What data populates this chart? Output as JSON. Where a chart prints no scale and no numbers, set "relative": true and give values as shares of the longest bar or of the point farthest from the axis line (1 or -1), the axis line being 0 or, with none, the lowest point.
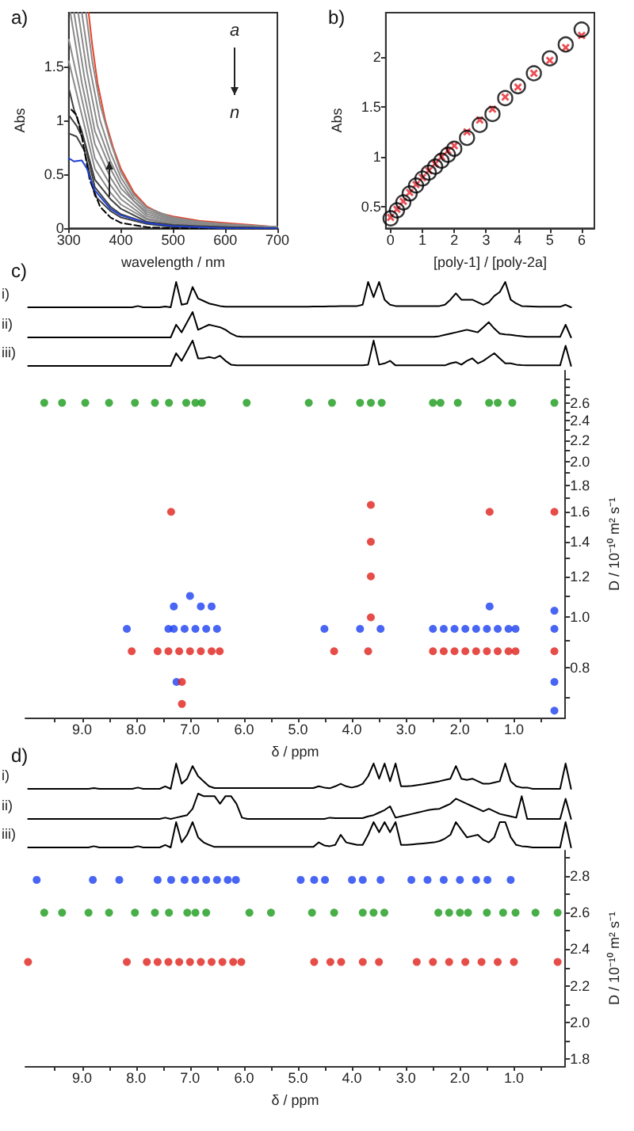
{
  "chart_data": [
    {
      "type": "line",
      "title": "a)",
      "xlabel": "wavelength / nm",
      "ylabel": "Abs",
      "annotations": [
        "a",
        "n"
      ],
      "marker": "none",
      "xlim": [
        300,
        700
      ],
      "ylim": [
        0,
        2
      ],
      "xticks": [
        300,
        400,
        500,
        600,
        700
      ],
      "yticks": [
        0,
        0.5,
        1,
        1.5
      ],
      "series": [
        {
          "color": "#e8432a",
          "x": [
            338,
            345,
            355,
            370,
            385,
            400,
            425,
            450,
            475,
            500,
            550,
            600,
            650,
            700
          ],
          "values": [
            2.0,
            1.7,
            1.35,
            1.0,
            0.75,
            0.55,
            0.33,
            0.2,
            0.14,
            0.11,
            0.07,
            0.05,
            0.03,
            0.01
          ]
        },
        {
          "color": "#8a8a8a",
          "x": [
            333,
            345,
            360,
            380,
            400,
            425,
            450,
            500,
            550,
            600,
            700
          ],
          "values": [
            2.0,
            1.55,
            1.15,
            0.8,
            0.52,
            0.31,
            0.19,
            0.1,
            0.06,
            0.04,
            0.01
          ]
        },
        {
          "color": "#8a8a8a",
          "x": [
            325,
            340,
            360,
            380,
            400,
            425,
            450,
            500,
            600,
            700
          ],
          "values": [
            2.0,
            1.5,
            1.0,
            0.7,
            0.47,
            0.28,
            0.17,
            0.09,
            0.03,
            0.01
          ]
        },
        {
          "color": "#8a8a8a",
          "x": [
            318,
            335,
            355,
            380,
            400,
            425,
            450,
            500,
            600,
            700
          ],
          "values": [
            2.0,
            1.45,
            0.95,
            0.62,
            0.42,
            0.25,
            0.15,
            0.08,
            0.03,
            0.01
          ]
        },
        {
          "color": "#8a8a8a",
          "x": [
            310,
            330,
            350,
            380,
            400,
            450,
            500,
            600,
            700
          ],
          "values": [
            2.0,
            1.4,
            0.9,
            0.55,
            0.37,
            0.13,
            0.07,
            0.02,
            0.01
          ]
        },
        {
          "color": "#8a8a8a",
          "x": [
            303,
            325,
            350,
            380,
            400,
            450,
            500,
            600,
            700
          ],
          "values": [
            2.0,
            1.35,
            0.78,
            0.47,
            0.32,
            0.11,
            0.06,
            0.02,
            0
          ]
        },
        {
          "color": "#8a8a8a",
          "x": [
            300,
            325,
            350,
            380,
            400,
            450,
            500,
            600,
            700
          ],
          "values": [
            1.75,
            1.2,
            0.65,
            0.4,
            0.27,
            0.09,
            0.05,
            0.02,
            0
          ]
        },
        {
          "color": "#8a8a8a",
          "x": [
            300,
            325,
            350,
            380,
            400,
            450,
            500,
            600,
            700
          ],
          "values": [
            1.55,
            1.05,
            0.55,
            0.33,
            0.22,
            0.08,
            0.04,
            0.01,
            0
          ]
        },
        {
          "color": "#404040",
          "x": [
            300,
            310,
            325,
            350,
            380,
            400,
            450,
            500,
            600,
            700
          ],
          "values": [
            1.3,
            1.1,
            0.9,
            0.45,
            0.27,
            0.18,
            0.06,
            0.03,
            0.01,
            0
          ]
        },
        {
          "color": "#404040",
          "x": [
            300,
            315,
            330,
            350,
            380,
            400,
            450,
            500,
            700
          ],
          "values": [
            1.05,
            0.95,
            0.8,
            0.38,
            0.2,
            0.13,
            0.05,
            0.02,
            0
          ]
        },
        {
          "color": "#404040",
          "x": [
            300,
            315,
            330,
            350,
            380,
            400,
            450,
            500,
            700
          ],
          "values": [
            0.88,
            0.85,
            0.72,
            0.3,
            0.16,
            0.1,
            0.04,
            0.01,
            0
          ]
        },
        {
          "color": "#000000",
          "line_style": "dashed",
          "x": [
            305,
            315,
            325,
            340,
            360,
            380,
            400,
            450,
            500,
            700
          ],
          "values": [
            1.1,
            1.05,
            0.85,
            0.45,
            0.2,
            0.1,
            0.05,
            0.01,
            0,
            0
          ]
        },
        {
          "color": "#1f3fd0",
          "x": [
            300,
            310,
            325,
            335,
            350,
            380,
            400,
            450,
            500,
            600,
            700
          ],
          "values": [
            0.65,
            0.62,
            0.63,
            0.55,
            0.35,
            0.18,
            0.12,
            0.05,
            0.02,
            0,
            0
          ]
        }
      ]
    },
    {
      "type": "scatter",
      "title": "b)",
      "xlabel": "[poly-1] / [poly-2a]",
      "ylabel": "Abs",
      "xlim": [
        -0.15,
        6.4
      ],
      "ylim": [
        0.28,
        2.45
      ],
      "xticks": [
        0,
        1,
        2,
        3,
        4,
        5,
        6
      ],
      "yticks": [
        0.5,
        1,
        1.5,
        2
      ],
      "x": [
        0,
        0.2,
        0.4,
        0.6,
        0.8,
        1.0,
        1.2,
        1.4,
        1.6,
        1.8,
        2.0,
        2.4,
        2.8,
        3.2,
        3.6,
        4.0,
        4.5,
        5.0,
        5.5,
        6.0
      ],
      "series": [
        {
          "color": "#000000",
          "marker": "circle",
          "values": [
            0.38,
            0.46,
            0.54,
            0.63,
            0.71,
            0.78,
            0.84,
            0.9,
            0.96,
            1.02,
            1.08,
            1.19,
            1.32,
            1.43,
            1.59,
            1.71,
            1.84,
            1.99,
            2.13,
            2.28
          ]
        },
        {
          "color": "#e8202a",
          "marker": "cross",
          "values": [
            0.39,
            0.47,
            0.55,
            0.64,
            0.72,
            0.79,
            0.86,
            0.93,
            1.0,
            1.06,
            1.11,
            1.25,
            1.37,
            1.48,
            1.6,
            1.7,
            1.84,
            1.97,
            2.1,
            2.22
          ]
        }
      ]
    },
    {
      "type": "line",
      "relative": true,
      "title": "c)",
      "ylabel": "i)",
      "tick_labels": false,
      "marker": "none",
      "color": "#000000",
      "categories": [
        null,
        null,
        null,
        null,
        null,
        null,
        null,
        null,
        null,
        null,
        null,
        null,
        null,
        null,
        null,
        null,
        null,
        null,
        null,
        null,
        null,
        null,
        null,
        null,
        null,
        null,
        null,
        null,
        null,
        null,
        null,
        null,
        null,
        null,
        null,
        null,
        null,
        null,
        null,
        null,
        null,
        null,
        null,
        null,
        null,
        null,
        null,
        null,
        null,
        null,
        null,
        null,
        null,
        null,
        null,
        null,
        null,
        null,
        null,
        null,
        null,
        null,
        null,
        null,
        null,
        null,
        null,
        null,
        null,
        null,
        null,
        null,
        null,
        null,
        null,
        null,
        null,
        null,
        null,
        null,
        null,
        null,
        null,
        null,
        null,
        null,
        null,
        null,
        null,
        null,
        null,
        null,
        null,
        null,
        null,
        null,
        null,
        null,
        null,
        null
      ],
      "values": [
        0,
        0,
        0,
        0,
        0,
        0,
        0,
        0,
        0,
        0,
        0,
        0,
        0,
        0,
        0,
        0,
        0,
        0,
        0,
        0,
        0.05,
        0,
        0,
        0,
        0,
        0.03,
        0,
        1,
        0.1,
        0.15,
        0.8,
        0.35,
        0.25,
        0.15,
        0.1,
        0.05,
        0.02,
        0.02,
        0.02,
        0.02,
        0.02,
        0.02,
        0.02,
        0.02,
        0.02,
        0.02,
        0.02,
        0.02,
        0.02,
        0.02,
        0.02,
        0.02,
        0.03,
        0.03,
        0.03,
        0.04,
        0.04,
        0.05,
        0.05,
        0.05,
        0.05,
        0.1,
        1,
        0.4,
        1,
        0.3,
        0.1,
        0.05,
        0.05,
        0.05,
        0.05,
        0.05,
        0.05,
        0.05,
        0.05,
        0.05,
        0.1,
        0.3,
        0.55,
        0.3,
        0.3,
        0.3,
        0.2,
        0.1,
        0.2,
        0.45,
        0.6,
        1,
        0.3,
        0.15,
        0.05,
        0.04,
        0.03,
        0.02,
        0.02,
        0.02,
        0.02,
        0.02,
        0.1,
        0
      ]
    },
    {
      "type": "line",
      "relative": true,
      "ylabel": "ii)",
      "tick_labels": false,
      "marker": "none",
      "color": "#000000",
      "categories": [
        null,
        null,
        null,
        null,
        null,
        null,
        null,
        null,
        null,
        null,
        null,
        null,
        null,
        null,
        null,
        null,
        null,
        null,
        null,
        null,
        null,
        null,
        null,
        null,
        null,
        null,
        null,
        null,
        null,
        null,
        null,
        null,
        null,
        null,
        null,
        null,
        null,
        null,
        null,
        null,
        null,
        null,
        null,
        null,
        null,
        null,
        null,
        null,
        null,
        null,
        null,
        null,
        null,
        null,
        null,
        null,
        null,
        null,
        null,
        null,
        null,
        null,
        null,
        null,
        null,
        null,
        null,
        null,
        null,
        null,
        null,
        null,
        null,
        null,
        null,
        null,
        null,
        null,
        null,
        null,
        null,
        null,
        null,
        null,
        null,
        null,
        null,
        null,
        null,
        null,
        null,
        null,
        null,
        null,
        null,
        null,
        null,
        null,
        null,
        null
      ],
      "values": [
        0,
        0,
        0,
        0,
        0,
        0,
        0,
        0,
        0,
        0,
        0,
        0,
        0,
        0,
        0,
        0,
        0,
        0,
        0,
        0,
        0,
        0,
        0,
        0,
        0,
        0,
        0,
        0.5,
        0.2,
        0.6,
        1.0,
        0.3,
        0.4,
        0.5,
        0.45,
        0.4,
        0.3,
        0.15,
        0.05,
        0.02,
        0.02,
        0.02,
        0.02,
        0.02,
        0.02,
        0.02,
        0.02,
        0.02,
        0.02,
        0.02,
        0.02,
        0.02,
        0.02,
        0.02,
        0.02,
        0.02,
        0.02,
        0.02,
        0.02,
        0.02,
        0.02,
        0.02,
        0.02,
        0.02,
        0.02,
        0.02,
        0.02,
        0.02,
        0.02,
        0.02,
        0.02,
        0.02,
        0.02,
        0.02,
        0.02,
        0.05,
        0.1,
        0.15,
        0.2,
        0.25,
        0.3,
        0.25,
        0.2,
        0.4,
        0.6,
        0.35,
        0.15,
        0.12,
        0.1,
        0.07,
        0.05,
        0.02,
        0.02,
        0.02,
        0.02,
        0.02,
        0.02,
        0.02,
        0.5,
        0
      ]
    },
    {
      "type": "line",
      "relative": true,
      "ylabel": "iii)",
      "tick_labels": false,
      "marker": "none",
      "color": "#000000",
      "categories": [
        null,
        null,
        null,
        null,
        null,
        null,
        null,
        null,
        null,
        null,
        null,
        null,
        null,
        null,
        null,
        null,
        null,
        null,
        null,
        null,
        null,
        null,
        null,
        null,
        null,
        null,
        null,
        null,
        null,
        null,
        null,
        null,
        null,
        null,
        null,
        null,
        null,
        null,
        null,
        null,
        null,
        null,
        null,
        null,
        null,
        null,
        null,
        null,
        null,
        null,
        null,
        null,
        null,
        null,
        null,
        null,
        null,
        null,
        null,
        null,
        null,
        null,
        null,
        null,
        null,
        null,
        null,
        null,
        null,
        null,
        null,
        null,
        null,
        null,
        null,
        null,
        null,
        null,
        null,
        null,
        null,
        null,
        null,
        null,
        null,
        null,
        null,
        null,
        null,
        null,
        null,
        null,
        null,
        null,
        null,
        null,
        null,
        null,
        null,
        null
      ],
      "values": [
        0,
        0,
        0,
        0,
        0,
        0,
        0,
        0,
        0,
        0,
        0,
        0,
        0,
        0,
        0,
        0,
        0,
        0,
        0,
        0,
        0,
        0,
        0,
        0,
        0,
        0,
        0,
        0.5,
        0.2,
        0.6,
        1.0,
        0.3,
        0.3,
        0.35,
        0.3,
        0.4,
        0.2,
        0.05,
        0.02,
        0.02,
        0.02,
        0.02,
        0.02,
        0.02,
        0.02,
        0.02,
        0.02,
        0.02,
        0.02,
        0.02,
        0.02,
        0.02,
        0.02,
        0.02,
        0.02,
        0.02,
        0.02,
        0.02,
        0.02,
        0.02,
        0.02,
        0.02,
        0.05,
        1.0,
        0.05,
        0.1,
        0.2,
        0.02,
        0.02,
        0.02,
        0.02,
        0.02,
        0.02,
        0.02,
        0.02,
        0.02,
        0.02,
        0.1,
        0.15,
        0.05,
        0.2,
        0.3,
        0.1,
        0.2,
        0.35,
        0.5,
        0.3,
        0.1,
        0.1,
        0.05,
        0.03,
        0.02,
        0.02,
        0.02,
        0.02,
        0.02,
        0.02,
        0.02,
        0.8,
        0
      ]
    },
    {
      "type": "scatter",
      "xlabel": "δ / ppm",
      "ylabel": "D / 10⁻¹⁰ m² s⁻¹",
      "log": "y",
      "marker": "circle",
      "xlim": [
        10.05,
        0.05
      ],
      "ylim": [
        0.64,
        3.0
      ],
      "xticks": [
        {
          "value": 9.5,
          "label": null
        },
        {
          "value": 9,
          "label": "9.0"
        },
        {
          "value": 8.5,
          "label": null
        },
        {
          "value": 8,
          "label": "8.0"
        },
        {
          "value": 7.5,
          "label": null
        },
        {
          "value": 7,
          "label": "7.0"
        },
        {
          "value": 6.5,
          "label": null
        },
        {
          "value": 6,
          "label": "6.0"
        },
        {
          "value": 5.5,
          "label": null
        },
        {
          "value": 5,
          "label": "5.0"
        },
        {
          "value": 4.5,
          "label": null
        },
        {
          "value": 4,
          "label": "4.0"
        },
        {
          "value": 3.5,
          "label": null
        },
        {
          "value": 3,
          "label": "3.0"
        },
        {
          "value": 2.5,
          "label": null
        },
        {
          "value": 2,
          "label": "2.0"
        },
        {
          "value": 1.5,
          "label": null
        },
        {
          "value": 1,
          "label": "1.0"
        },
        {
          "value": 0.5,
          "label": null
        }
      ],
      "yticks": [
        {
          "value": 0.7,
          "label": null
        },
        0.8,
        {
          "value": 0.9,
          "label": null
        },
        {
          "value": 1,
          "label": "1.0"
        },
        {
          "value": 1.1,
          "label": null
        },
        1.2,
        {
          "value": 1.3,
          "label": null
        },
        1.4,
        {
          "value": 1.5,
          "label": null
        },
        1.6,
        {
          "value": 1.7,
          "label": null
        },
        1.8,
        {
          "value": 1.9,
          "label": null
        },
        {
          "value": 2,
          "label": "2.0"
        },
        {
          "value": 2.1,
          "label": null
        },
        2.2,
        {
          "value": 2.3,
          "label": null
        },
        2.4,
        {
          "value": 2.5,
          "label": null
        },
        2.6,
        {
          "value": 2.7,
          "label": null
        },
        {
          "value": 2.8,
          "label": null
        },
        {
          "value": 2.9,
          "label": null
        }
      ],
      "series": [
        {
          "color": "#1a9a1a",
          "x": [
            9.7,
            9.37,
            8.94,
            8.5,
            8.02,
            7.65,
            7.39,
            7.07,
            6.9,
            6.78,
            5.95,
            4.8,
            4.37,
            3.85,
            3.65,
            3.45,
            2.5,
            2.36,
            2.04,
            1.46,
            1.3,
            1.03,
            0.25
          ],
          "values": [
            2.6,
            2.6,
            2.6,
            2.6,
            2.6,
            2.6,
            2.6,
            2.6,
            2.6,
            2.6,
            2.6,
            2.6,
            2.6,
            2.6,
            2.6,
            2.6,
            2.6,
            2.6,
            2.6,
            2.6,
            2.6,
            2.6,
            2.6
          ]
        },
        {
          "color": "#1a3ff0",
          "x": [
            8.17,
            7.4,
            7.3,
            7.1,
            6.9,
            6.7,
            6.5,
            4.51,
            3.85,
            3.47,
            2.5,
            2.3,
            2.1,
            1.9,
            1.7,
            1.5,
            1.3,
            1.1,
            0.97,
            0.25,
            7.3,
            7.25,
            7.0,
            6.8,
            6.6,
            1.45,
            0.25,
            0.25,
            0.25
          ],
          "values": [
            0.95,
            0.95,
            0.95,
            0.95,
            0.95,
            0.95,
            0.95,
            0.95,
            0.95,
            0.95,
            0.95,
            0.95,
            0.95,
            0.95,
            0.95,
            0.95,
            0.95,
            0.95,
            0.95,
            0.95,
            1.05,
            0.75,
            1.1,
            1.05,
            1.05,
            1.05,
            0.75,
            1.03,
            0.66
          ]
        },
        {
          "color": "#e0201a",
          "x": [
            8.08,
            7.6,
            7.4,
            7.2,
            7.0,
            6.8,
            6.6,
            6.45,
            4.33,
            3.7,
            2.5,
            2.3,
            2.1,
            1.9,
            1.7,
            1.5,
            1.3,
            1.1,
            0.97,
            0.25,
            3.65,
            3.65,
            3.65,
            3.65,
            7.35,
            1.45,
            0.25,
            7.15,
            7.15
          ],
          "values": [
            0.86,
            0.86,
            0.86,
            0.86,
            0.86,
            0.86,
            0.86,
            0.86,
            0.86,
            0.86,
            0.86,
            0.86,
            0.86,
            0.86,
            0.86,
            0.86,
            0.86,
            0.86,
            0.86,
            0.86,
            1.0,
            1.2,
            1.4,
            1.65,
            1.6,
            1.6,
            1.6,
            0.75,
            0.68
          ]
        }
      ]
    },
    {
      "type": "line",
      "relative": true,
      "title": "d)",
      "ylabel": "i)",
      "tick_labels": false,
      "marker": "none",
      "color": "#000000",
      "categories": [
        null,
        null,
        null,
        null,
        null,
        null,
        null,
        null,
        null,
        null,
        null,
        null,
        null,
        null,
        null,
        null,
        null,
        null,
        null,
        null,
        null,
        null,
        null,
        null,
        null,
        null,
        null,
        null,
        null,
        null,
        null,
        null,
        null,
        null,
        null,
        null,
        null,
        null,
        null,
        null,
        null,
        null,
        null,
        null,
        null,
        null,
        null,
        null,
        null,
        null,
        null,
        null,
        null,
        null,
        null,
        null,
        null,
        null,
        null,
        null,
        null,
        null,
        null,
        null,
        null,
        null,
        null,
        null,
        null,
        null,
        null,
        null,
        null,
        null,
        null,
        null,
        null,
        null,
        null,
        null,
        null,
        null,
        null,
        null,
        null,
        null,
        null,
        null,
        null,
        null,
        null,
        null,
        null,
        null,
        null,
        null,
        null,
        null,
        null,
        null
      ],
      "values": [
        0,
        0,
        0,
        0,
        0,
        0,
        0,
        0,
        0,
        0,
        0,
        0,
        0.03,
        0,
        0,
        0,
        0,
        0,
        0,
        0,
        0.05,
        0,
        0,
        0,
        0,
        0.1,
        0,
        1.0,
        0.2,
        0.4,
        0.9,
        0.5,
        0.3,
        0.1,
        0.03,
        0.03,
        0.03,
        0.03,
        0.03,
        0.03,
        0.03,
        0.03,
        0.03,
        0.03,
        0.03,
        0.03,
        0.03,
        0.03,
        0.03,
        0.03,
        0.03,
        0.03,
        0.03,
        0.1,
        0.05,
        0.02,
        0.1,
        0.2,
        0.1,
        0.05,
        0.1,
        0.2,
        0.5,
        1.0,
        0.4,
        1.0,
        0.3,
        1.0,
        0.1,
        0.1,
        0.12,
        0.15,
        0.18,
        0.22,
        0.26,
        0.3,
        0.35,
        0.4,
        0.9,
        0.4,
        0.35,
        0.4,
        0.3,
        0.2,
        0.2,
        0.25,
        0.3,
        1.0,
        0.3,
        0.1,
        0.05,
        0.05,
        0,
        0,
        0,
        0,
        0,
        0,
        1.0,
        0
      ]
    },
    {
      "type": "line",
      "relative": true,
      "ylabel": "ii)",
      "tick_labels": false,
      "marker": "none",
      "color": "#000000",
      "categories": [
        null,
        null,
        null,
        null,
        null,
        null,
        null,
        null,
        null,
        null,
        null,
        null,
        null,
        null,
        null,
        null,
        null,
        null,
        null,
        null,
        null,
        null,
        null,
        null,
        null,
        null,
        null,
        null,
        null,
        null,
        null,
        null,
        null,
        null,
        null,
        null,
        null,
        null,
        null,
        null,
        null,
        null,
        null,
        null,
        null,
        null,
        null,
        null,
        null,
        null,
        null,
        null,
        null,
        null,
        null,
        null,
        null,
        null,
        null,
        null,
        null,
        null,
        null,
        null,
        null,
        null,
        null,
        null,
        null,
        null,
        null,
        null,
        null,
        null,
        null,
        null,
        null,
        null,
        null,
        null,
        null,
        null,
        null,
        null,
        null,
        null,
        null,
        null,
        null,
        null,
        null,
        null,
        null,
        null,
        null,
        null,
        null,
        null,
        null,
        null
      ],
      "values": [
        0,
        0,
        0,
        0,
        0,
        0,
        0,
        0,
        0,
        0,
        0,
        0,
        0,
        0,
        0,
        0,
        0,
        0,
        0,
        0,
        0,
        0,
        0,
        0,
        0,
        0.05,
        0,
        0.05,
        0.1,
        0.15,
        0.4,
        1.0,
        0.9,
        0.9,
        0.9,
        0.6,
        0.9,
        0.9,
        0.6,
        0.05,
        0,
        0,
        0,
        0,
        0,
        0,
        0,
        0,
        0,
        0,
        0,
        0,
        0,
        0,
        0,
        0.05,
        0.03,
        0.03,
        0.03,
        0.03,
        0.03,
        0.03,
        0.1,
        0.15,
        0.25,
        0.35,
        0.5,
        0.05,
        0.1,
        0.15,
        0.2,
        0.25,
        0.3,
        0.35,
        0.38,
        0.4,
        0.5,
        0.6,
        0.8,
        0.7,
        0.6,
        0.5,
        0.4,
        0.3,
        0.4,
        0.3,
        0.2,
        0.15,
        0.1,
        0.05,
        0.9,
        0,
        0,
        0,
        0,
        0,
        0,
        0,
        0.8,
        0
      ]
    },
    {
      "type": "line",
      "relative": true,
      "ylabel": "iii)",
      "tick_labels": false,
      "marker": "none",
      "color": "#000000",
      "categories": [
        null,
        null,
        null,
        null,
        null,
        null,
        null,
        null,
        null,
        null,
        null,
        null,
        null,
        null,
        null,
        null,
        null,
        null,
        null,
        null,
        null,
        null,
        null,
        null,
        null,
        null,
        null,
        null,
        null,
        null,
        null,
        null,
        null,
        null,
        null,
        null,
        null,
        null,
        null,
        null,
        null,
        null,
        null,
        null,
        null,
        null,
        null,
        null,
        null,
        null,
        null,
        null,
        null,
        null,
        null,
        null,
        null,
        null,
        null,
        null,
        null,
        null,
        null,
        null,
        null,
        null,
        null,
        null,
        null,
        null,
        null,
        null,
        null,
        null,
        null,
        null,
        null,
        null,
        null,
        null,
        null,
        null,
        null,
        null,
        null,
        null,
        null,
        null,
        null,
        null,
        null,
        null,
        null,
        null,
        null,
        null,
        null,
        null,
        null,
        null
      ],
      "values": [
        0,
        0,
        0,
        0,
        0,
        0,
        0,
        0,
        0,
        0,
        0,
        0,
        0.05,
        0,
        0,
        0,
        0,
        0,
        0,
        0,
        0.05,
        0,
        0,
        0,
        0,
        0.1,
        0,
        1.0,
        0.2,
        0.5,
        1.0,
        0.4,
        0.2,
        0.1,
        0.02,
        0.02,
        0.02,
        0.02,
        0.02,
        0.02,
        0.02,
        0.02,
        0.02,
        0.02,
        0.02,
        0.02,
        0.02,
        0.02,
        0.02,
        0.02,
        0.02,
        0.02,
        0.02,
        0.2,
        0.08,
        0.05,
        0.1,
        0.5,
        0.2,
        0.15,
        0.1,
        0.1,
        0.5,
        1.0,
        0.6,
        1.0,
        0.6,
        1.0,
        0.1,
        0.1,
        0.12,
        0.14,
        0.16,
        0.18,
        0.2,
        0.25,
        0.35,
        0.5,
        1.0,
        0.7,
        0.4,
        0.45,
        0.5,
        0.3,
        0.2,
        0.4,
        1.0,
        1.0,
        0.4,
        0.1,
        0.05,
        0.03,
        0,
        0,
        0,
        0,
        0,
        0,
        1.0,
        0
      ]
    },
    {
      "type": "scatter",
      "xlabel": "δ / ppm",
      "ylabel": "D / 10⁻¹⁰ m² s⁻¹",
      "marker": "circle",
      "xlim": [
        10.05,
        0.05
      ],
      "ylim": [
        1.76,
        2.94
      ],
      "xticks": [
        {
          "value": 9.5,
          "label": null
        },
        {
          "value": 9,
          "label": "9.0"
        },
        {
          "value": 8.5,
          "label": null
        },
        {
          "value": 8,
          "label": "8.0"
        },
        {
          "value": 7.5,
          "label": null
        },
        {
          "value": 7,
          "label": "7.0"
        },
        {
          "value": 6.5,
          "label": null
        },
        {
          "value": 6,
          "label": "6.0"
        },
        {
          "value": 5.5,
          "label": null
        },
        {
          "value": 5,
          "label": "5.0"
        },
        {
          "value": 4.5,
          "label": null
        },
        {
          "value": 4,
          "label": "4.0"
        },
        {
          "value": 3.5,
          "label": null
        },
        {
          "value": 3,
          "label": "3.0"
        },
        {
          "value": 2.5,
          "label": null
        },
        {
          "value": 2,
          "label": "2.0"
        },
        {
          "value": 1.5,
          "label": null
        },
        {
          "value": 1,
          "label": "1.0"
        },
        {
          "value": 0.5,
          "label": null
        }
      ],
      "yticks": [
        1.8,
        {
          "value": 1.9,
          "label": null
        },
        {
          "value": 2,
          "label": "2.0"
        },
        {
          "value": 2.1,
          "label": null
        },
        2.2,
        {
          "value": 2.3,
          "label": null
        },
        2.4,
        {
          "value": 2.5,
          "label": null
        },
        2.6,
        {
          "value": 2.7,
          "label": null
        },
        2.8,
        {
          "value": 2.9,
          "label": null
        }
      ],
      "series": [
        {
          "color": "#1a3ff0",
          "x": [
            9.84,
            8.8,
            8.31,
            7.6,
            7.35,
            7.1,
            6.9,
            6.7,
            6.5,
            6.3,
            6.15,
            4.95,
            4.7,
            4.5,
            4.0,
            3.8,
            3.47,
            2.9,
            2.6,
            2.3,
            2.0,
            1.7,
            1.49,
            1.06
          ],
          "values": [
            2.78,
            2.78,
            2.78,
            2.78,
            2.78,
            2.78,
            2.78,
            2.78,
            2.78,
            2.78,
            2.78,
            2.78,
            2.78,
            2.78,
            2.78,
            2.78,
            2.78,
            2.78,
            2.78,
            2.78,
            2.78,
            2.78,
            2.78,
            2.78
          ]
        },
        {
          "color": "#1a9a1a",
          "x": [
            9.7,
            9.37,
            8.88,
            8.5,
            8.02,
            7.65,
            7.39,
            7.05,
            6.9,
            6.7,
            5.9,
            5.5,
            4.74,
            4.33,
            3.8,
            3.6,
            3.4,
            2.4,
            2.2,
            2.0,
            1.85,
            1.5,
            1.2,
            0.97,
            0.6,
            0.19
          ],
          "values": [
            2.6,
            2.6,
            2.6,
            2.6,
            2.6,
            2.6,
            2.6,
            2.6,
            2.6,
            2.6,
            2.6,
            2.6,
            2.6,
            2.6,
            2.6,
            2.6,
            2.6,
            2.6,
            2.6,
            2.6,
            2.6,
            2.6,
            2.6,
            2.6,
            2.6,
            2.6
          ]
        },
        {
          "color": "#e0201a",
          "x": [
            10.0,
            8.17,
            7.8,
            7.6,
            7.4,
            7.2,
            7.0,
            6.8,
            6.6,
            6.4,
            6.2,
            6.05,
            4.7,
            4.4,
            4.2,
            3.8,
            3.5,
            2.8,
            2.5,
            2.2,
            1.9,
            1.6,
            1.3,
            1.0,
            0.19
          ],
          "values": [
            2.33,
            2.33,
            2.33,
            2.33,
            2.33,
            2.33,
            2.33,
            2.33,
            2.33,
            2.33,
            2.33,
            2.33,
            2.33,
            2.33,
            2.33,
            2.33,
            2.33,
            2.33,
            2.33,
            2.33,
            2.33,
            2.33,
            2.33,
            2.33,
            2.33
          ]
        }
      ]
    }
  ]
}
